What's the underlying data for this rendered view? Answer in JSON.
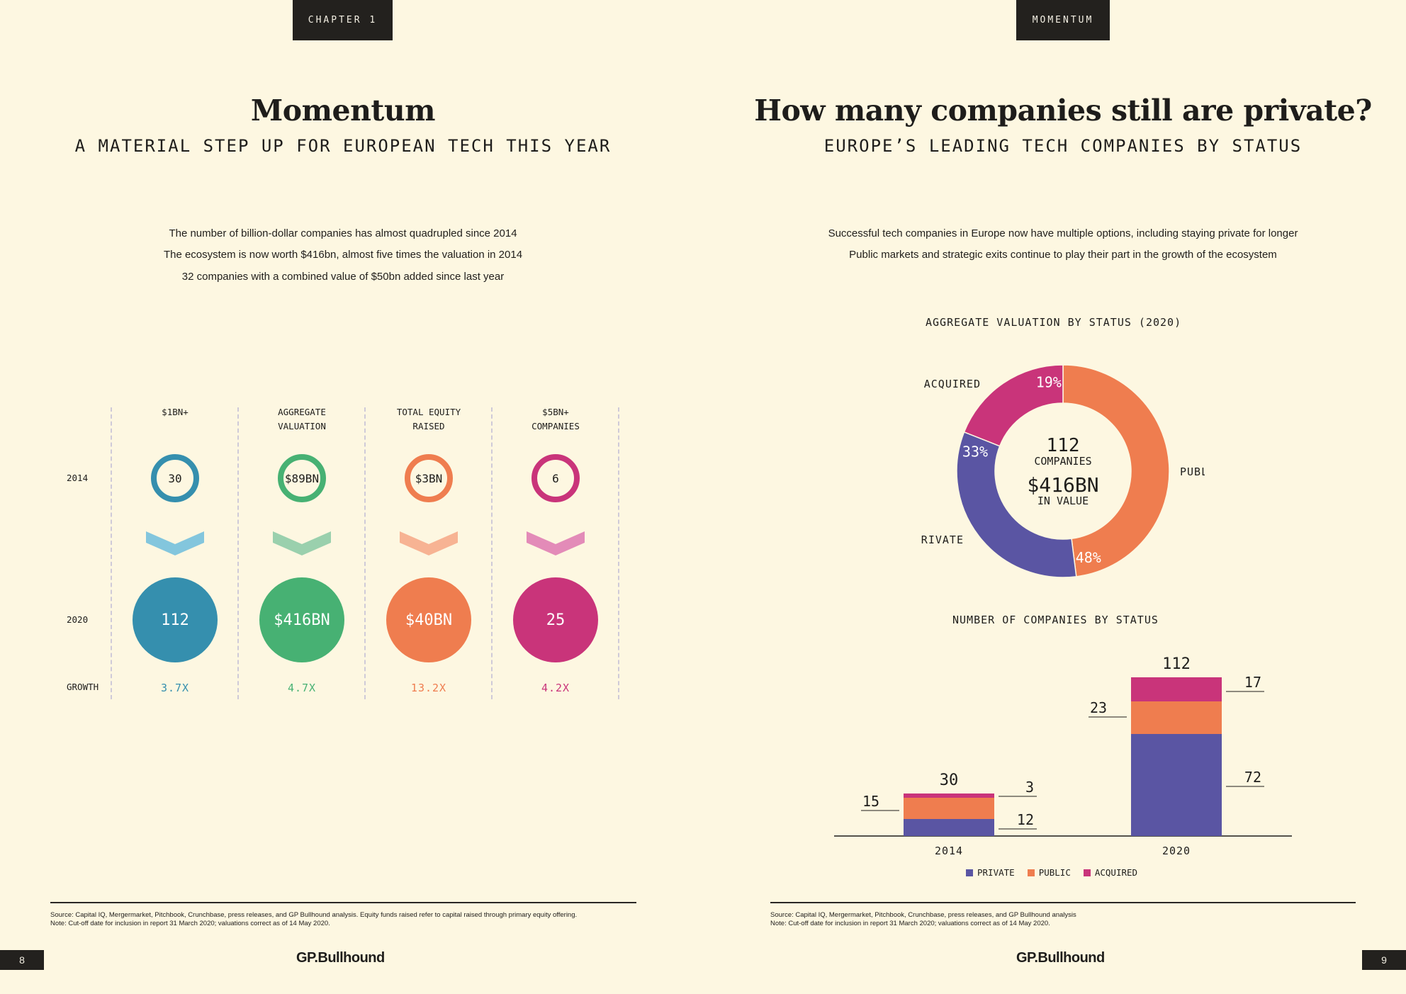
{
  "left_page": {
    "chapter_tab": "CHAPTER 1",
    "title": "Momentum",
    "subtitle": "A MATERIAL STEP UP FOR EUROPEAN TECH THIS YEAR",
    "intro_lines": [
      "The number of billion-dollar companies has almost quadrupled since 2014",
      "The ecosystem is now worth $416bn, almost five times the valuation in 2014",
      "32 companies with a combined value of $50bn added since last year"
    ],
    "row_labels": {
      "y2014": "2014",
      "y2020": "2020",
      "growth": "GROWTH"
    },
    "columns": [
      {
        "header_line1": "$1BN+",
        "header_line2": "",
        "value_2014": "30",
        "value_2020": "112",
        "growth": "3.7X",
        "color": "#358fae",
        "chevron_color": "#83c6dd"
      },
      {
        "header_line1": "AGGREGATE",
        "header_line2": "VALUATION",
        "value_2014": "$89BN",
        "value_2020": "$416BN",
        "growth": "4.7X",
        "color": "#47b173",
        "chevron_color": "#9ad0ad"
      },
      {
        "header_line1": "TOTAL EQUITY",
        "header_line2": "RAISED",
        "value_2014": "$3BN",
        "value_2020": "$40BN",
        "growth": "13.2X",
        "color": "#ef7d4f",
        "chevron_color": "#f7b393"
      },
      {
        "header_line1": "$5BN+",
        "header_line2": "COMPANIES",
        "value_2014": "6",
        "value_2020": "25",
        "growth": "4.2X",
        "color": "#c9347a",
        "chevron_color": "#e38bb8"
      }
    ],
    "footnote_lines": [
      "Source: Capital IQ, Mergermarket, Pitchbook, Crunchbase, press releases, and GP Bullhound analysis. Equity funds raised refer to capital raised through primary equity offering.",
      "Note: Cut-off date for inclusion in report 31 March 2020; valuations correct as of 14 May 2020."
    ],
    "page_number": "8",
    "logo": "GP.Bullhound"
  },
  "right_page": {
    "chapter_tab": "MOMENTUM",
    "title": "How many companies still are private?",
    "subtitle": "EUROPE’S LEADING TECH COMPANIES BY STATUS",
    "intro_lines": [
      "Successful tech companies in Europe now have multiple options, including staying private for longer",
      "Public markets and strategic exits continue to play their part in the growth of the ecosystem"
    ],
    "footnote_lines": [
      "Source: Capital IQ, Mergermarket, Pitchbook, Crunchbase, press releases, and GP Bullhound analysis",
      "Note: Cut-off date for inclusion in report 31 March 2020; valuations correct as of 14 May 2020."
    ],
    "page_number": "9",
    "logo": "GP.Bullhound"
  },
  "colors": {
    "private": "#5a55a3",
    "public": "#ef7d4f",
    "acquired": "#c9347a"
  },
  "chart_data": [
    {
      "type": "pie",
      "title": "AGGREGATE VALUATION BY STATUS (2020)",
      "center_line1": "112",
      "center_line2": "COMPANIES",
      "center_line3": "$416BN",
      "center_line4": "IN VALUE",
      "slices": [
        {
          "label": "PUBLIC",
          "value": 48,
          "value_label": "48%",
          "color": "#ef7d4f"
        },
        {
          "label": "PRIVATE",
          "value": 33,
          "value_label": "33%",
          "color": "#5a55a3"
        },
        {
          "label": "ACQUIRED",
          "value": 19,
          "value_label": "19%",
          "color": "#c9347a"
        }
      ]
    },
    {
      "type": "bar",
      "stacked": true,
      "title": "NUMBER OF COMPANIES BY STATUS",
      "categories": [
        "2014",
        "2020"
      ],
      "totals": [
        30,
        112
      ],
      "series": [
        {
          "name": "PRIVATE",
          "values": [
            12,
            72
          ],
          "color": "#5a55a3"
        },
        {
          "name": "PUBLIC",
          "values": [
            15,
            23
          ],
          "color": "#ef7d4f"
        },
        {
          "name": "ACQUIRED",
          "values": [
            3,
            17
          ],
          "color": "#c9347a"
        }
      ],
      "legend": "bottom"
    }
  ]
}
